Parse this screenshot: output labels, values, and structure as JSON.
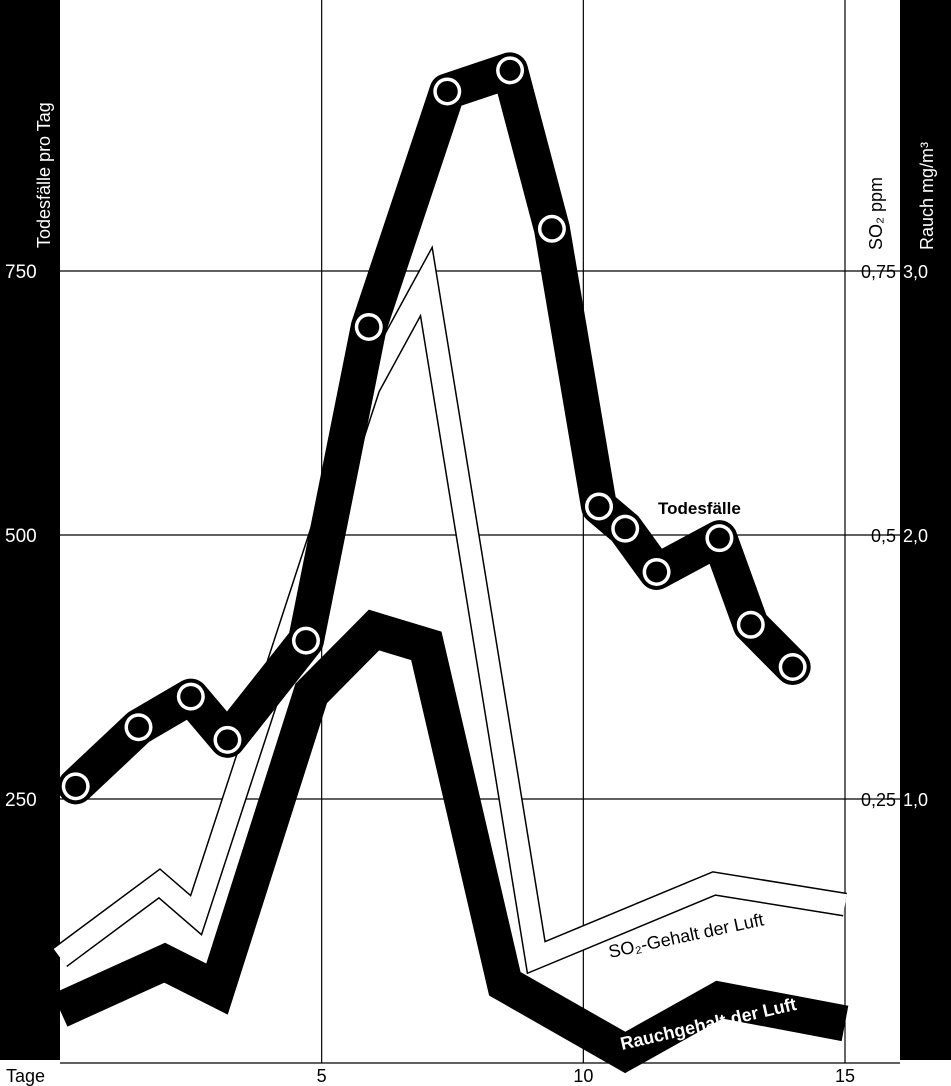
{
  "chart_data": {
    "type": "line",
    "x_label": "Tage",
    "x_ticks": [
      5,
      10,
      15
    ],
    "xlim": [
      0,
      15
    ],
    "left_axis": {
      "label": "Todesfälle pro Tag",
      "ticks": [
        250,
        500,
        750
      ],
      "ylim": [
        0,
        1000
      ]
    },
    "right_axis_so2": {
      "label": "SO₂ ppm",
      "ticks": [
        "0,25",
        "0,5",
        "0,75"
      ],
      "ylim": [
        0,
        1.0
      ]
    },
    "right_axis_rauch": {
      "label": "Rauch mg/m³",
      "ticks": [
        "1,0",
        "2,0",
        "3,0"
      ],
      "ylim": [
        0,
        4.0
      ]
    },
    "series": [
      {
        "name": "Todesfälle",
        "axis": "left",
        "style": "thick-line-with-circle-markers",
        "x": [
          0.3,
          1.5,
          2.5,
          3.2,
          4.7,
          5.9,
          7.4,
          8.6,
          9.4,
          10.3,
          10.8,
          11.4,
          12.6,
          13.2,
          14.0
        ],
        "y": [
          262,
          318,
          347,
          306,
          400,
          697,
          920,
          940,
          790,
          527,
          506,
          465,
          497,
          415,
          375
        ]
      },
      {
        "name": "SO₂-Gehalt der Luft",
        "axis": "right_so2",
        "style": "outlined-band",
        "x": [
          0,
          1.9,
          2.6,
          5.9,
          7.0,
          9.1,
          12.5,
          15.0
        ],
        "y": [
          0.1,
          0.17,
          0.14,
          0.64,
          0.74,
          0.1,
          0.17,
          0.15
        ]
      },
      {
        "name": "Rauchgehalt der Luft",
        "axis": "right_rauch",
        "style": "thick-band",
        "x": [
          0,
          2.0,
          3.0,
          4.8,
          6.0,
          7.0,
          8.5,
          10.8,
          12.6,
          15.0
        ],
        "y": [
          0.2,
          0.38,
          0.28,
          1.4,
          1.64,
          1.58,
          0.3,
          0.04,
          0.24,
          0.15
        ]
      }
    ]
  }
}
